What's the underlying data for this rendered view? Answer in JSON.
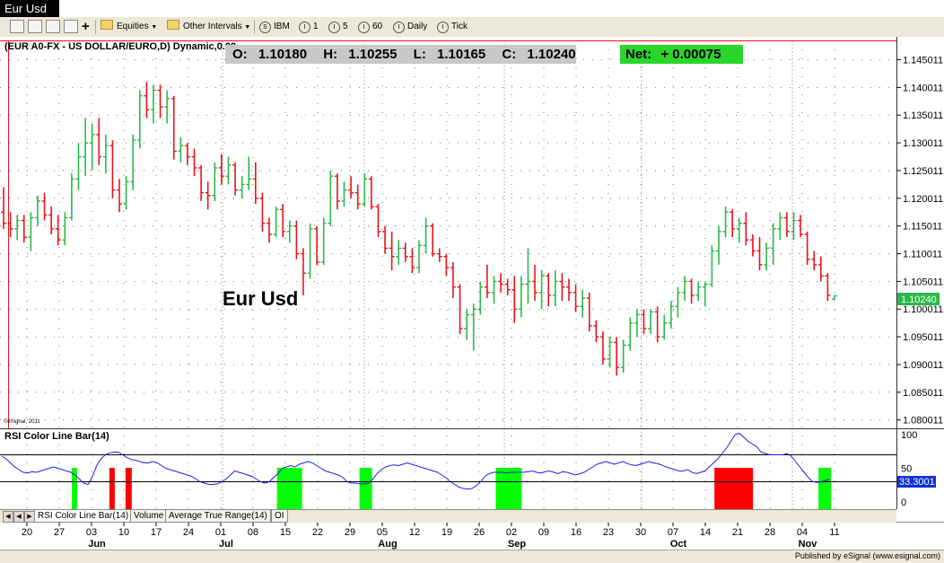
{
  "window": {
    "tab_title": "Eur Usd"
  },
  "toolbar": {
    "equities_label": "Equities",
    "intervals_label": "Other Intervals",
    "symbol_label": "IBM",
    "i1_label": "1",
    "i5_label": "5",
    "i60_label": "60",
    "daily_label": "Daily",
    "tick_label": "Tick",
    "symbol_circle": "S",
    "interval_circle": "I"
  },
  "chart_data": {
    "type": "bar",
    "title": "(EUR A0-FX - US DOLLAR/EURO,D) Dynamic,0.00 ",
    "watermark": "Eur Usd",
    "copyright": "©eSignal, 2011",
    "ohlc": {
      "o_label": "O:",
      "o": "1.10180",
      "h_label": "H:",
      "h": "1.10255",
      "l_label": "L:",
      "l": "1.10165",
      "c_label": "C:",
      "c": "1.10240",
      "net_label": "Net:",
      "net": "+ 0.00075"
    },
    "price_axis": {
      "ticks": [
        "1.145011",
        "1.140011",
        "1.135011",
        "1.130011",
        "1.125011",
        "1.120011",
        "1.115011",
        "1.110011",
        "1.105011",
        "1.100011",
        "1.095011",
        "1.090011",
        "1.085011",
        "1.080011"
      ],
      "last_value": "1.10240",
      "ylim": [
        1.0785,
        1.1485
      ]
    },
    "colors": {
      "up": "#2db84a",
      "down": "#e8141b",
      "rsi_line": "#2020e0",
      "rsi_up_band": "#00ff00",
      "rsi_down_band": "#ff0000",
      "last_price_tag": "#2db84a",
      "rsi_tag": "#1030d0"
    },
    "bars": [
      {
        "o": 1.1175,
        "h": 1.122,
        "l": 1.1145,
        "c": 1.1155
      },
      {
        "o": 1.1155,
        "h": 1.1175,
        "l": 1.113,
        "c": 1.1145
      },
      {
        "o": 1.1145,
        "h": 1.117,
        "l": 1.1125,
        "c": 1.116
      },
      {
        "o": 1.116,
        "h": 1.117,
        "l": 1.112,
        "c": 1.113
      },
      {
        "o": 1.113,
        "h": 1.1175,
        "l": 1.1105,
        "c": 1.1165
      },
      {
        "o": 1.1165,
        "h": 1.1205,
        "l": 1.115,
        "c": 1.1195
      },
      {
        "o": 1.1195,
        "h": 1.121,
        "l": 1.116,
        "c": 1.117
      },
      {
        "o": 1.117,
        "h": 1.1185,
        "l": 1.1135,
        "c": 1.1145
      },
      {
        "o": 1.1145,
        "h": 1.117,
        "l": 1.1115,
        "c": 1.1125
      },
      {
        "o": 1.1125,
        "h": 1.1175,
        "l": 1.1115,
        "c": 1.1165
      },
      {
        "o": 1.1165,
        "h": 1.1245,
        "l": 1.116,
        "c": 1.1235
      },
      {
        "o": 1.1235,
        "h": 1.13,
        "l": 1.1215,
        "c": 1.1275
      },
      {
        "o": 1.1275,
        "h": 1.1345,
        "l": 1.124,
        "c": 1.13
      },
      {
        "o": 1.13,
        "h": 1.1335,
        "l": 1.125,
        "c": 1.1315
      },
      {
        "o": 1.1315,
        "h": 1.1345,
        "l": 1.126,
        "c": 1.1275
      },
      {
        "o": 1.1275,
        "h": 1.1315,
        "l": 1.1245,
        "c": 1.1295
      },
      {
        "o": 1.1295,
        "h": 1.1305,
        "l": 1.12,
        "c": 1.1215
      },
      {
        "o": 1.1215,
        "h": 1.1235,
        "l": 1.1175,
        "c": 1.119
      },
      {
        "o": 1.119,
        "h": 1.124,
        "l": 1.118,
        "c": 1.123
      },
      {
        "o": 1.123,
        "h": 1.1315,
        "l": 1.1215,
        "c": 1.1305
      },
      {
        "o": 1.1305,
        "h": 1.1395,
        "l": 1.129,
        "c": 1.1385
      },
      {
        "o": 1.1385,
        "h": 1.141,
        "l": 1.1345,
        "c": 1.136
      },
      {
        "o": 1.136,
        "h": 1.1405,
        "l": 1.1335,
        "c": 1.1395
      },
      {
        "o": 1.1395,
        "h": 1.1405,
        "l": 1.1345,
        "c": 1.1365
      },
      {
        "o": 1.1365,
        "h": 1.1395,
        "l": 1.1335,
        "c": 1.138
      },
      {
        "o": 1.138,
        "h": 1.1385,
        "l": 1.127,
        "c": 1.1285
      },
      {
        "o": 1.1285,
        "h": 1.131,
        "l": 1.1265,
        "c": 1.1295
      },
      {
        "o": 1.1295,
        "h": 1.13,
        "l": 1.126,
        "c": 1.1275
      },
      {
        "o": 1.1275,
        "h": 1.129,
        "l": 1.124,
        "c": 1.1255
      },
      {
        "o": 1.1255,
        "h": 1.126,
        "l": 1.1195,
        "c": 1.121
      },
      {
        "o": 1.121,
        "h": 1.123,
        "l": 1.118,
        "c": 1.1205
      },
      {
        "o": 1.1205,
        "h": 1.1265,
        "l": 1.1195,
        "c": 1.1255
      },
      {
        "o": 1.1255,
        "h": 1.128,
        "l": 1.1225,
        "c": 1.124
      },
      {
        "o": 1.124,
        "h": 1.1275,
        "l": 1.1225,
        "c": 1.126
      },
      {
        "o": 1.126,
        "h": 1.1265,
        "l": 1.1205,
        "c": 1.1215
      },
      {
        "o": 1.1215,
        "h": 1.124,
        "l": 1.12,
        "c": 1.1225
      },
      {
        "o": 1.1225,
        "h": 1.1275,
        "l": 1.1215,
        "c": 1.1235
      },
      {
        "o": 1.1235,
        "h": 1.1265,
        "l": 1.119,
        "c": 1.12
      },
      {
        "o": 1.12,
        "h": 1.121,
        "l": 1.114,
        "c": 1.1155
      },
      {
        "o": 1.1155,
        "h": 1.1165,
        "l": 1.112,
        "c": 1.1135
      },
      {
        "o": 1.1135,
        "h": 1.1185,
        "l": 1.113,
        "c": 1.118
      },
      {
        "o": 1.118,
        "h": 1.119,
        "l": 1.113,
        "c": 1.114
      },
      {
        "o": 1.114,
        "h": 1.116,
        "l": 1.112,
        "c": 1.115
      },
      {
        "o": 1.115,
        "h": 1.116,
        "l": 1.109,
        "c": 1.11
      },
      {
        "o": 1.11,
        "h": 1.111,
        "l": 1.1025,
        "c": 1.1065
      },
      {
        "o": 1.1065,
        "h": 1.1155,
        "l": 1.1055,
        "c": 1.1145
      },
      {
        "o": 1.1145,
        "h": 1.115,
        "l": 1.108,
        "c": 1.1085
      },
      {
        "o": 1.1085,
        "h": 1.1165,
        "l": 1.108,
        "c": 1.1155
      },
      {
        "o": 1.1155,
        "h": 1.125,
        "l": 1.115,
        "c": 1.124
      },
      {
        "o": 1.124,
        "h": 1.1245,
        "l": 1.118,
        "c": 1.1195
      },
      {
        "o": 1.1195,
        "h": 1.123,
        "l": 1.1185,
        "c": 1.1215
      },
      {
        "o": 1.1215,
        "h": 1.124,
        "l": 1.12,
        "c": 1.121
      },
      {
        "o": 1.121,
        "h": 1.1225,
        "l": 1.118,
        "c": 1.119
      },
      {
        "o": 1.119,
        "h": 1.1245,
        "l": 1.1185,
        "c": 1.1235
      },
      {
        "o": 1.1235,
        "h": 1.124,
        "l": 1.118,
        "c": 1.1185
      },
      {
        "o": 1.1185,
        "h": 1.119,
        "l": 1.113,
        "c": 1.114
      },
      {
        "o": 1.114,
        "h": 1.115,
        "l": 1.11,
        "c": 1.111
      },
      {
        "o": 1.111,
        "h": 1.114,
        "l": 1.107,
        "c": 1.1095
      },
      {
        "o": 1.1095,
        "h": 1.1125,
        "l": 1.108,
        "c": 1.111
      },
      {
        "o": 1.111,
        "h": 1.112,
        "l": 1.1085,
        "c": 1.1095
      },
      {
        "o": 1.1095,
        "h": 1.111,
        "l": 1.1065,
        "c": 1.1075
      },
      {
        "o": 1.1075,
        "h": 1.1125,
        "l": 1.1065,
        "c": 1.1115
      },
      {
        "o": 1.1115,
        "h": 1.1165,
        "l": 1.11,
        "c": 1.115
      },
      {
        "o": 1.115,
        "h": 1.1155,
        "l": 1.1095,
        "c": 1.11
      },
      {
        "o": 1.11,
        "h": 1.111,
        "l": 1.1085,
        "c": 1.1095
      },
      {
        "o": 1.1095,
        "h": 1.11,
        "l": 1.106,
        "c": 1.1075
      },
      {
        "o": 1.1075,
        "h": 1.1085,
        "l": 1.102,
        "c": 1.104
      },
      {
        "o": 1.104,
        "h": 1.1045,
        "l": 1.0955,
        "c": 1.0965
      },
      {
        "o": 1.0965,
        "h": 1.1,
        "l": 1.0945,
        "c": 1.099
      },
      {
        "o": 1.099,
        "h": 1.101,
        "l": 1.0925,
        "c": 1.1
      },
      {
        "o": 1.1,
        "h": 1.105,
        "l": 1.099,
        "c": 1.104
      },
      {
        "o": 1.104,
        "h": 1.108,
        "l": 1.102,
        "c": 1.103
      },
      {
        "o": 1.103,
        "h": 1.106,
        "l": 1.101,
        "c": 1.105
      },
      {
        "o": 1.105,
        "h": 1.1065,
        "l": 1.103,
        "c": 1.1045
      },
      {
        "o": 1.1045,
        "h": 1.1055,
        "l": 1.1025,
        "c": 1.1035
      },
      {
        "o": 1.1035,
        "h": 1.106,
        "l": 1.0975,
        "c": 1.1
      },
      {
        "o": 1.1,
        "h": 1.106,
        "l": 1.0985,
        "c": 1.1045
      },
      {
        "o": 1.1045,
        "h": 1.111,
        "l": 1.101,
        "c": 1.105
      },
      {
        "o": 1.105,
        "h": 1.108,
        "l": 1.1015,
        "c": 1.103
      },
      {
        "o": 1.103,
        "h": 1.107,
        "l": 1.1,
        "c": 1.106
      },
      {
        "o": 1.106,
        "h": 1.1065,
        "l": 1.1005,
        "c": 1.1025
      },
      {
        "o": 1.1025,
        "h": 1.107,
        "l": 1.1005,
        "c": 1.105
      },
      {
        "o": 1.105,
        "h": 1.1065,
        "l": 1.1015,
        "c": 1.104
      },
      {
        "o": 1.104,
        "h": 1.1055,
        "l": 1.1015,
        "c": 1.103
      },
      {
        "o": 1.103,
        "h": 1.1045,
        "l": 1.0995,
        "c": 1.1005
      },
      {
        "o": 1.1005,
        "h": 1.1035,
        "l": 1.0985,
        "c": 1.102
      },
      {
        "o": 1.102,
        "h": 1.103,
        "l": 1.096,
        "c": 1.097
      },
      {
        "o": 1.097,
        "h": 1.098,
        "l": 1.094,
        "c": 1.095
      },
      {
        "o": 1.095,
        "h": 1.096,
        "l": 1.09,
        "c": 1.091
      },
      {
        "o": 1.091,
        "h": 1.095,
        "l": 1.0895,
        "c": 1.094
      },
      {
        "o": 1.094,
        "h": 1.095,
        "l": 1.088,
        "c": 1.0895
      },
      {
        "o": 1.0895,
        "h": 1.0945,
        "l": 1.0885,
        "c": 1.0935
      },
      {
        "o": 1.0935,
        "h": 1.0985,
        "l": 1.0925,
        "c": 1.0975
      },
      {
        "o": 1.0975,
        "h": 1.1,
        "l": 1.095,
        "c": 1.099
      },
      {
        "o": 1.099,
        "h": 1.1,
        "l": 1.0955,
        "c": 1.0965
      },
      {
        "o": 1.0965,
        "h": 1.1,
        "l": 1.0955,
        "c": 1.0995
      },
      {
        "o": 1.0995,
        "h": 1.1005,
        "l": 1.094,
        "c": 1.095
      },
      {
        "o": 1.095,
        "h": 1.099,
        "l": 1.0945,
        "c": 1.0975
      },
      {
        "o": 1.0975,
        "h": 1.1015,
        "l": 1.0965,
        "c": 1.1005
      },
      {
        "o": 1.1005,
        "h": 1.104,
        "l": 1.0985,
        "c": 1.103
      },
      {
        "o": 1.103,
        "h": 1.106,
        "l": 1.1015,
        "c": 1.105
      },
      {
        "o": 1.105,
        "h": 1.1055,
        "l": 1.101,
        "c": 1.1025
      },
      {
        "o": 1.1025,
        "h": 1.105,
        "l": 1.1015,
        "c": 1.104
      },
      {
        "o": 1.104,
        "h": 1.105,
        "l": 1.1005,
        "c": 1.1045
      },
      {
        "o": 1.1045,
        "h": 1.1115,
        "l": 1.104,
        "c": 1.1105
      },
      {
        "o": 1.1105,
        "h": 1.115,
        "l": 1.108,
        "c": 1.114
      },
      {
        "o": 1.114,
        "h": 1.1185,
        "l": 1.113,
        "c": 1.1175
      },
      {
        "o": 1.1175,
        "h": 1.118,
        "l": 1.113,
        "c": 1.1145
      },
      {
        "o": 1.1145,
        "h": 1.1165,
        "l": 1.112,
        "c": 1.1155
      },
      {
        "o": 1.1155,
        "h": 1.1175,
        "l": 1.1115,
        "c": 1.1125
      },
      {
        "o": 1.1125,
        "h": 1.1135,
        "l": 1.1095,
        "c": 1.1105
      },
      {
        "o": 1.1105,
        "h": 1.113,
        "l": 1.107,
        "c": 1.108
      },
      {
        "o": 1.108,
        "h": 1.112,
        "l": 1.107,
        "c": 1.111
      },
      {
        "o": 1.111,
        "h": 1.1155,
        "l": 1.108,
        "c": 1.1145
      },
      {
        "o": 1.1145,
        "h": 1.1175,
        "l": 1.1125,
        "c": 1.1165
      },
      {
        "o": 1.1165,
        "h": 1.1175,
        "l": 1.113,
        "c": 1.114
      },
      {
        "o": 1.114,
        "h": 1.1175,
        "l": 1.1125,
        "c": 1.116
      },
      {
        "o": 1.116,
        "h": 1.117,
        "l": 1.113,
        "c": 1.1135
      },
      {
        "o": 1.1135,
        "h": 1.114,
        "l": 1.108,
        "c": 1.109
      },
      {
        "o": 1.109,
        "h": 1.1105,
        "l": 1.107,
        "c": 1.108
      },
      {
        "o": 1.108,
        "h": 1.1095,
        "l": 1.105,
        "c": 1.106
      },
      {
        "o": 1.106,
        "h": 1.1065,
        "l": 1.1015,
        "c": 1.1025
      },
      {
        "o": 1.1018,
        "h": 1.10255,
        "l": 1.10165,
        "c": 1.1024
      }
    ],
    "x_ticks": [
      "20",
      "27",
      "03",
      "10",
      "17",
      "24",
      "01",
      "08",
      "15",
      "22",
      "29",
      "05",
      "12",
      "19",
      "26",
      "02",
      "09",
      "16",
      "23",
      "30",
      "07",
      "14",
      "21",
      "28",
      "04",
      "11"
    ],
    "month_labels": [
      {
        "label": "Jun",
        "after_tick": "03"
      },
      {
        "label": "Jul",
        "after_tick": "01"
      },
      {
        "label": "Aug",
        "after_tick": "05"
      },
      {
        "label": "Sep",
        "after_tick": "02"
      },
      {
        "label": "Oct",
        "after_tick": "07"
      },
      {
        "label": "Nov",
        "after_tick": "04"
      }
    ],
    "rsi": {
      "title": "RSI Color Line Bar(14)",
      "axis_ticks": [
        "100",
        "50",
        "0"
      ],
      "levels": [
        70,
        30
      ],
      "current": "33.3001",
      "values": [
        68,
        64,
        58,
        52,
        48,
        44,
        43,
        45,
        44,
        46,
        48,
        50,
        52,
        50,
        48,
        46,
        44,
        40,
        34,
        28,
        26,
        38,
        54,
        64,
        70,
        73,
        74,
        74,
        70,
        66,
        63,
        62,
        60,
        58,
        58,
        60,
        58,
        54,
        50,
        48,
        46,
        44,
        42,
        40,
        38,
        34,
        30,
        28,
        26,
        26,
        27,
        30,
        34,
        40,
        46,
        44,
        42,
        40,
        38,
        34,
        30,
        28,
        30,
        36,
        42,
        50,
        52,
        54,
        52,
        56,
        58,
        60,
        58,
        54,
        50,
        46,
        44,
        42,
        40,
        37,
        30,
        28,
        28,
        27,
        27,
        28,
        34,
        42,
        48,
        52,
        54,
        55,
        54,
        56,
        58,
        56,
        54,
        52,
        50,
        48,
        46,
        44,
        40,
        36,
        30,
        26,
        22,
        20,
        19,
        20,
        24,
        30,
        38,
        42,
        44,
        44,
        44,
        43,
        44,
        44,
        44,
        44,
        45,
        46,
        44,
        43,
        45,
        46,
        44,
        42,
        45,
        44,
        42,
        40,
        42,
        44,
        48,
        52,
        56,
        58,
        60,
        58,
        56,
        58,
        60,
        57,
        55,
        54,
        56,
        58,
        60,
        58,
        57,
        55,
        52,
        50,
        48,
        46,
        46,
        48,
        44,
        42,
        44,
        46,
        52,
        58,
        64,
        72,
        80,
        90,
        100,
        102,
        96,
        90,
        86,
        82,
        74,
        72,
        70,
        70,
        70,
        70,
        72,
        68,
        60,
        52,
        44,
        36,
        30,
        29,
        30,
        32,
        33.3
      ],
      "bands": [
        {
          "color": "green",
          "from": 0.078,
          "to": 0.084
        },
        {
          "color": "red",
          "from": 0.12,
          "to": 0.126
        },
        {
          "color": "red",
          "from": 0.138,
          "to": 0.145
        },
        {
          "color": "green",
          "from": 0.307,
          "to": 0.335
        },
        {
          "color": "green",
          "from": 0.399,
          "to": 0.413
        },
        {
          "color": "green",
          "from": 0.551,
          "to": 0.58
        },
        {
          "color": "red",
          "from": 0.795,
          "to": 0.838
        },
        {
          "color": "green",
          "from": 0.911,
          "to": 0.925
        }
      ]
    },
    "ylabel": "",
    "xlabel": ""
  },
  "tabs": [
    "RSI Color Line Bar(14)",
    "Volume",
    "Average True Range(14)",
    "OI"
  ],
  "footer": {
    "text": "Published by eSignal (www.esignal.com)"
  }
}
